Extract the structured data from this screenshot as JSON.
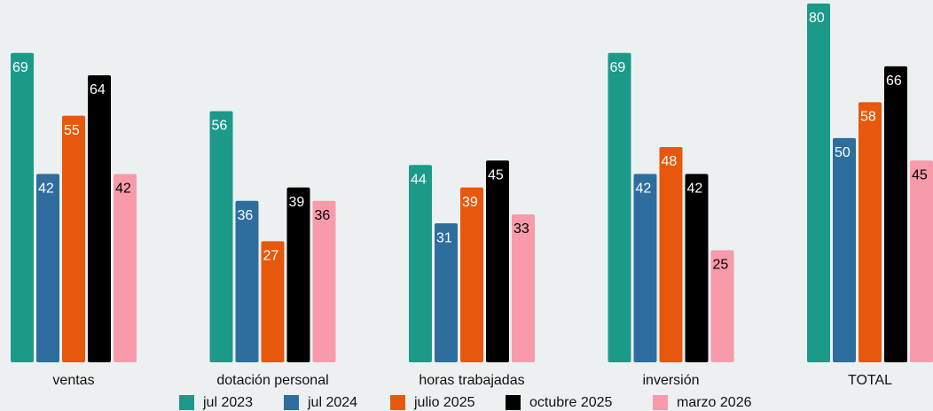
{
  "chart_data": {
    "type": "bar",
    "categories": [
      "ventas",
      "dotación personal",
      "horas trabajadas",
      "inversión",
      "TOTAL"
    ],
    "series": [
      {
        "name": "jul 2023",
        "color": "#1b9a8a",
        "values": [
          69,
          56,
          44,
          69,
          80
        ]
      },
      {
        "name": "jul 2024",
        "color": "#2e6e9e",
        "values": [
          42,
          36,
          31,
          42,
          50
        ]
      },
      {
        "name": "julio 2025",
        "color": "#e8580c",
        "values": [
          55,
          27,
          39,
          48,
          58
        ]
      },
      {
        "name": "octubre 2025",
        "color": "#000000",
        "values": [
          64,
          39,
          45,
          42,
          66
        ]
      },
      {
        "name": "marzo 2026",
        "color": "#f99aab",
        "values": [
          42,
          36,
          33,
          25,
          45
        ]
      }
    ],
    "ylim": [
      0,
      80
    ]
  }
}
